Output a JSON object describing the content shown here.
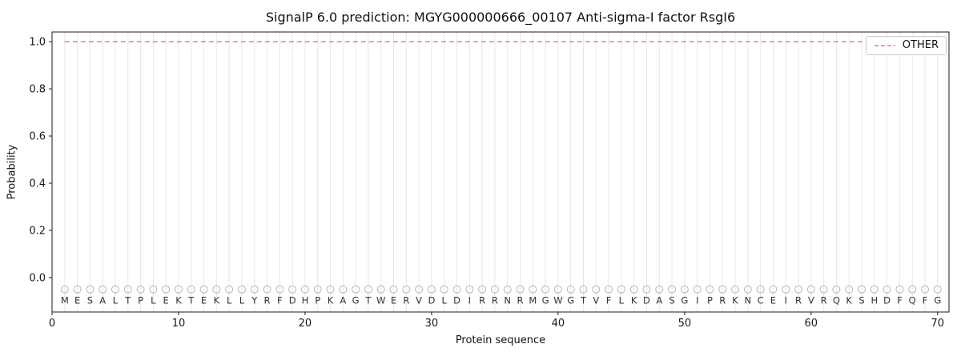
{
  "colors": {
    "other_line": "#ec7c7c",
    "grid": "#e7e7e7",
    "marker": "#b5b5b5",
    "spine": "#1a1a1a",
    "text": "#1a1a1a",
    "letter": "#333333"
  },
  "chart_data": {
    "type": "line",
    "title": "SignalP 6.0 prediction: MGYG000000666_00107 Anti-sigma-I factor RsgI6",
    "xlabel": "Protein sequence",
    "ylabel": "Probability",
    "xlim": [
      0,
      70.9
    ],
    "ylim": [
      -0.146,
      1.041
    ],
    "xtick_values": [
      0,
      10,
      20,
      30,
      40,
      50,
      60,
      70
    ],
    "xtick_labels": [
      "0",
      "10",
      "20",
      "30",
      "40",
      "50",
      "60",
      "70"
    ],
    "ytick_values": [
      0.0,
      0.2,
      0.4,
      0.6,
      0.8,
      1.0
    ],
    "ytick_labels": [
      "0.0",
      "0.2",
      "0.4",
      "0.6",
      "0.8",
      "1.0"
    ],
    "grid": true,
    "legend_position": "upper right",
    "sequence": "MESALTPLEKTEKLLYRFDHPKAGTWERVDLDIRRNRMGWGTVFLKDASGIPRKNCEIRVRQKSHDFQFG",
    "marker_y": -0.05,
    "series": [
      {
        "name": "OTHER",
        "color": "#ec7c7c",
        "linestyle": "dashed",
        "x": [
          1,
          2,
          3,
          4,
          5,
          6,
          7,
          8,
          9,
          10,
          11,
          12,
          13,
          14,
          15,
          16,
          17,
          18,
          19,
          20,
          21,
          22,
          23,
          24,
          25,
          26,
          27,
          28,
          29,
          30,
          31,
          32,
          33,
          34,
          35,
          36,
          37,
          38,
          39,
          40,
          41,
          42,
          43,
          44,
          45,
          46,
          47,
          48,
          49,
          50,
          51,
          52,
          53,
          54,
          55,
          56,
          57,
          58,
          59,
          60,
          61,
          62,
          63,
          64,
          65,
          66,
          67,
          68,
          69,
          70
        ],
        "y": [
          1.0,
          1.0,
          1.0,
          1.0,
          1.0,
          1.0,
          1.0,
          1.0,
          1.0,
          1.0,
          1.0,
          1.0,
          1.0,
          1.0,
          1.0,
          1.0,
          1.0,
          1.0,
          1.0,
          1.0,
          1.0,
          1.0,
          1.0,
          1.0,
          1.0,
          1.0,
          1.0,
          1.0,
          1.0,
          1.0,
          1.0,
          1.0,
          1.0,
          1.0,
          1.0,
          1.0,
          1.0,
          1.0,
          1.0,
          1.0,
          1.0,
          1.0,
          1.0,
          1.0,
          1.0,
          1.0,
          1.0,
          1.0,
          1.0,
          1.0,
          1.0,
          1.0,
          1.0,
          1.0,
          1.0,
          1.0,
          1.0,
          1.0,
          1.0,
          1.0,
          1.0,
          1.0,
          1.0,
          1.0,
          1.0,
          1.0,
          1.0,
          1.0,
          1.0,
          1.0
        ]
      }
    ]
  }
}
